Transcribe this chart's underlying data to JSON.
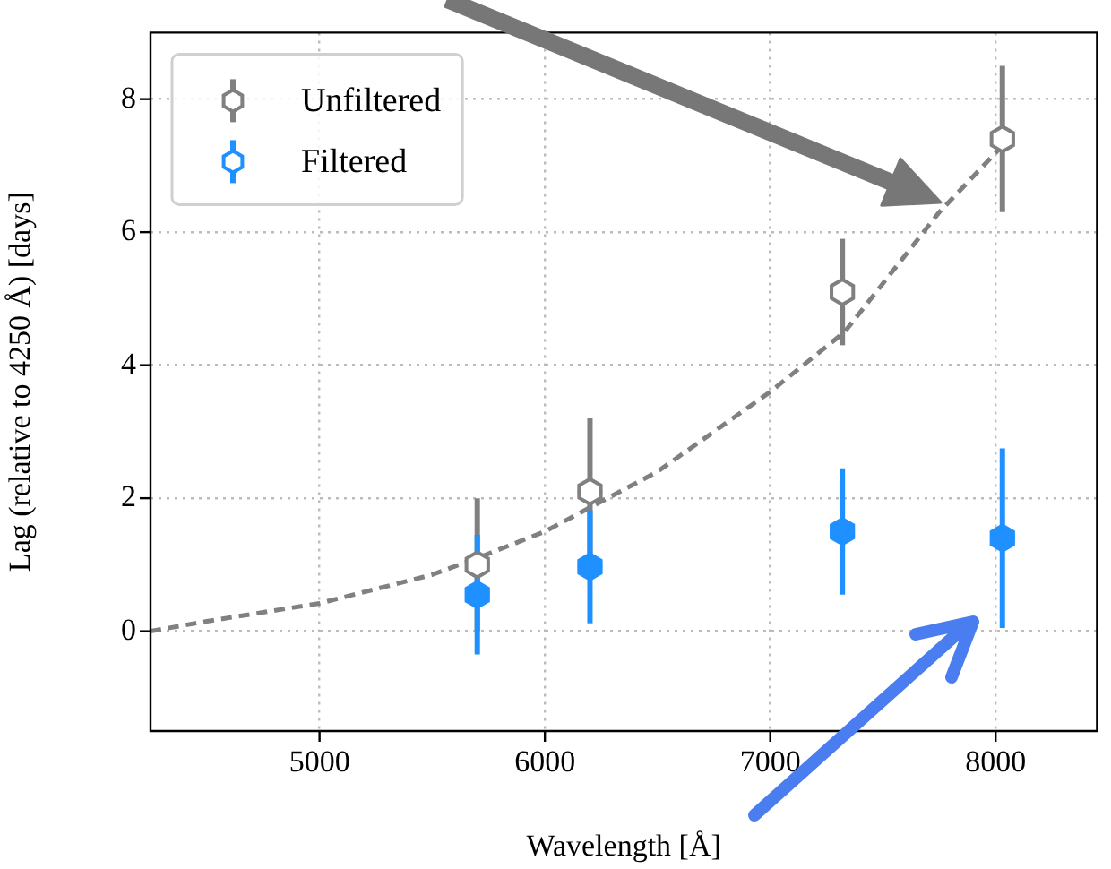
{
  "chart_data": {
    "type": "scatter",
    "xlabel": "Wavelength [Å]",
    "ylabel": "Lag (relative to 4250 Å) [days]",
    "xlim": [
      4250,
      8450
    ],
    "ylim": [
      -1.5,
      9
    ],
    "xticks": [
      5000,
      6000,
      7000,
      8000
    ],
    "yticks": [
      0,
      2,
      4,
      6,
      8
    ],
    "grid": true,
    "legend": "top left",
    "series": [
      {
        "name": "Unfiltered",
        "type": "scatter",
        "color": "#808080",
        "x": [
          5700,
          6200,
          7320,
          8030
        ],
        "values": [
          1.0,
          2.1,
          5.1,
          7.4
        ],
        "errors": [
          1.0,
          1.1,
          0.8,
          1.1
        ]
      },
      {
        "name": "Filtered",
        "type": "scatter",
        "color": "#1e90ff",
        "x": [
          5700,
          6200,
          7320,
          8030
        ],
        "values": [
          0.55,
          0.97,
          1.5,
          1.4
        ],
        "errors": [
          0.9,
          0.85,
          0.95,
          1.35
        ]
      },
      {
        "type": "line",
        "color": "#808080",
        "line_style": "dashed",
        "marker": "none",
        "x": [
          4250,
          4500,
          5000,
          5500,
          5700,
          6000,
          6500,
          7000,
          7330,
          7750,
          8030
        ],
        "values": [
          0,
          0.15,
          0.42,
          0.85,
          1.1,
          1.5,
          2.4,
          3.6,
          4.5,
          6.3,
          7.3
        ]
      }
    ]
  }
}
